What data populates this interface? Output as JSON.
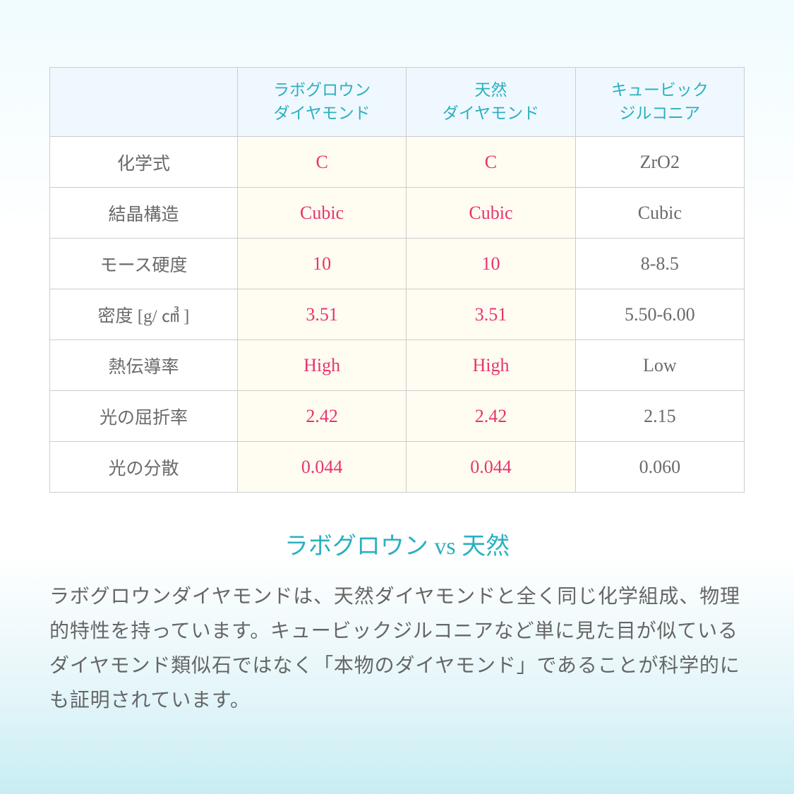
{
  "table": {
    "headers": [
      "",
      "ラボグロウン\nダイヤモンド",
      "天然\nダイヤモンド",
      "キュービック\nジルコニア"
    ],
    "rows": [
      {
        "label": "化学式",
        "c1": "C",
        "c2": "C",
        "c3": "ZrO2"
      },
      {
        "label": "結晶構造",
        "c1": "Cubic",
        "c2": "Cubic",
        "c3": "Cubic"
      },
      {
        "label": "モース硬度",
        "c1": "10",
        "c2": "10",
        "c3": "8-8.5"
      },
      {
        "label": "密度 [g/ ㎤ ]",
        "c1": "3.51",
        "c2": "3.51",
        "c3": "5.50-6.00"
      },
      {
        "label": "熱伝導率",
        "c1": "High",
        "c2": "High",
        "c3": "Low"
      },
      {
        "label": "光の屈折率",
        "c1": "2.42",
        "c2": "2.42",
        "c3": "2.15"
      },
      {
        "label": "光の分散",
        "c1": "0.044",
        "c2": "0.044",
        "c3": "0.060"
      }
    ]
  },
  "heading": "ラボグロウン vs 天然",
  "body": "ラボグロウンダイヤモンドは、天然ダイヤモンドと全く同じ化学組成、物理的特性を持っています。キュービックジルコニアなど単に見た目が似ているダイヤモンド類似石ではなく「本物のダイヤモンド」であることが科学的にも証明されています。",
  "colors": {
    "teal": "#2bb0c0",
    "pink": "#e6356d",
    "gray_text": "#6a6a6a",
    "body_text": "#666666",
    "border": "#cccccc",
    "header_bg": "#f0f8ff",
    "highlight_bg": "#fffcf2",
    "cell_bg": "#ffffff"
  },
  "typography": {
    "cell_fontsize": 26,
    "header_fontsize": 23,
    "label_fontsize": 25,
    "heading_fontsize": 34,
    "body_fontsize": 28
  }
}
